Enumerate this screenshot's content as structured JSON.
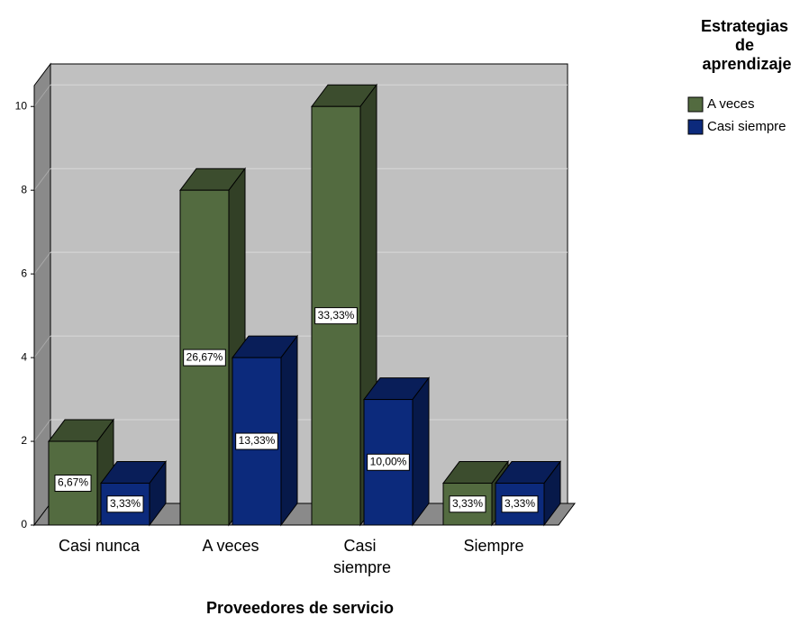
{
  "chart_data": {
    "type": "bar3d",
    "x_label": "Proveedores de servicio",
    "legend_title": "Estrategias de aprendizaje",
    "categories": [
      "Casi nunca",
      "A veces",
      "Casi siempre",
      "Siempre"
    ],
    "series": [
      {
        "name": "A veces",
        "color": "#536b40",
        "values": [
          2,
          8,
          10,
          1
        ],
        "value_labels": [
          "6,67%",
          "26,67%",
          "33,33%",
          "3,33%"
        ]
      },
      {
        "name": "Casi siempre",
        "color": "#0c2a7c",
        "values": [
          1,
          4,
          3,
          1
        ],
        "value_labels": [
          "3,33%",
          "13,33%",
          "10,00%",
          "3,33%"
        ]
      }
    ],
    "ylim": [
      0,
      10.5
    ],
    "yticks": [
      0,
      2,
      4,
      6,
      8,
      10
    ],
    "grid": true,
    "legend": "top-right"
  }
}
